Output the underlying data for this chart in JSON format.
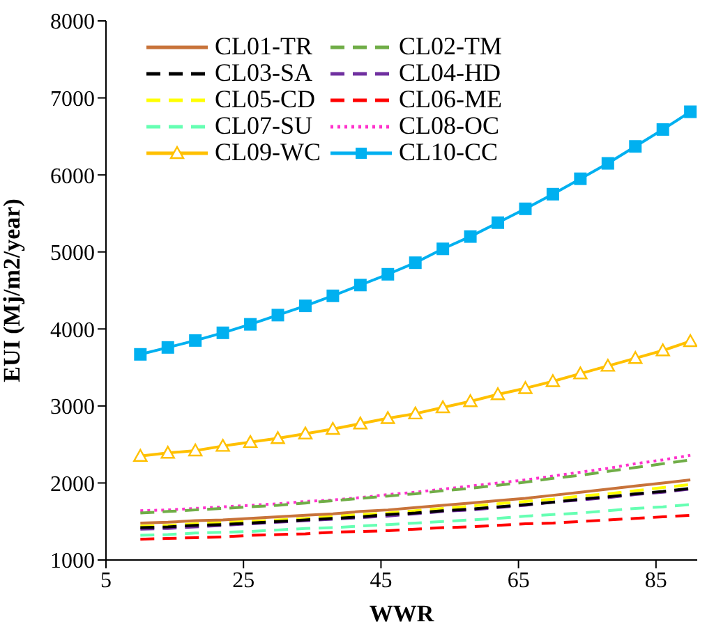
{
  "chart_data": {
    "type": "line",
    "xlabel": "WWR",
    "ylabel": "EUI (Mj/m2/year)",
    "x": [
      10,
      14,
      18,
      22,
      26,
      30,
      34,
      38,
      42,
      46,
      50,
      54,
      58,
      62,
      66,
      70,
      74,
      78,
      82,
      86,
      90
    ],
    "xlim": [
      5,
      91
    ],
    "xticks": [
      5,
      25,
      45,
      65,
      85
    ],
    "ylim": [
      1000,
      8000
    ],
    "yticks": [
      1000,
      2000,
      3000,
      4000,
      5000,
      6000,
      7000,
      8000
    ],
    "legend": "top left",
    "series": [
      {
        "name": "CL01-TR",
        "color": "#c8733a",
        "line_style": "solid",
        "marker": "none",
        "values": [
          1480,
          1490,
          1510,
          1520,
          1540,
          1560,
          1580,
          1600,
          1630,
          1650,
          1680,
          1710,
          1740,
          1770,
          1800,
          1840,
          1880,
          1920,
          1960,
          2000,
          2040
        ]
      },
      {
        "name": "CL02-TM",
        "color": "#70ad47",
        "line_style": "dashed",
        "marker": "none",
        "values": [
          1610,
          1630,
          1650,
          1670,
          1690,
          1710,
          1740,
          1770,
          1800,
          1830,
          1860,
          1900,
          1930,
          1970,
          2010,
          2060,
          2100,
          2150,
          2200,
          2250,
          2300
        ]
      },
      {
        "name": "CL03-SA",
        "color": "#000000",
        "line_style": "dashed",
        "marker": "none",
        "values": [
          1420,
          1430,
          1450,
          1460,
          1480,
          1500,
          1520,
          1540,
          1560,
          1590,
          1610,
          1640,
          1660,
          1690,
          1720,
          1750,
          1790,
          1820,
          1860,
          1890,
          1930
        ]
      },
      {
        "name": "CL04-HD",
        "color": "#7030a0",
        "line_style": "dashed",
        "marker": "none",
        "values": [
          1400,
          1410,
          1430,
          1450,
          1470,
          1490,
          1510,
          1530,
          1550,
          1570,
          1600,
          1630,
          1650,
          1680,
          1710,
          1750,
          1780,
          1810,
          1850,
          1880,
          1920
        ]
      },
      {
        "name": "CL05-CD",
        "color": "#ffff00",
        "line_style": "dashed",
        "marker": "none",
        "values": [
          1440,
          1450,
          1470,
          1490,
          1500,
          1520,
          1540,
          1570,
          1590,
          1610,
          1640,
          1670,
          1700,
          1730,
          1760,
          1790,
          1830,
          1860,
          1900,
          1940,
          1980
        ]
      },
      {
        "name": "CL06-ME",
        "color": "#ff0000",
        "line_style": "dashed",
        "marker": "none",
        "values": [
          1270,
          1280,
          1290,
          1300,
          1320,
          1330,
          1340,
          1360,
          1370,
          1380,
          1400,
          1420,
          1430,
          1450,
          1470,
          1480,
          1500,
          1520,
          1540,
          1560,
          1580
        ]
      },
      {
        "name": "CL07-SU",
        "color": "#66ffb3",
        "line_style": "dashed",
        "marker": "none",
        "values": [
          1320,
          1330,
          1350,
          1360,
          1370,
          1390,
          1410,
          1420,
          1440,
          1460,
          1480,
          1500,
          1520,
          1540,
          1570,
          1590,
          1610,
          1640,
          1670,
          1690,
          1720
        ]
      },
      {
        "name": "CL08-OC",
        "color": "#ff33cc",
        "line_style": "dotted",
        "marker": "none",
        "values": [
          1640,
          1650,
          1670,
          1690,
          1710,
          1730,
          1760,
          1780,
          1810,
          1850,
          1880,
          1920,
          1960,
          2000,
          2040,
          2090,
          2140,
          2190,
          2250,
          2300,
          2360
        ]
      },
      {
        "name": "CL09-WC",
        "color": "#ffc000",
        "line_style": "solid",
        "marker": "triangle",
        "values": [
          2350,
          2390,
          2420,
          2480,
          2530,
          2580,
          2640,
          2700,
          2770,
          2840,
          2900,
          2980,
          3060,
          3150,
          3230,
          3320,
          3420,
          3520,
          3620,
          3720,
          3840
        ]
      },
      {
        "name": "CL10-CC",
        "color": "#00b0f0",
        "line_style": "solid",
        "marker": "square",
        "values": [
          3670,
          3760,
          3850,
          3950,
          4060,
          4180,
          4300,
          4430,
          4570,
          4710,
          4860,
          5040,
          5200,
          5380,
          5560,
          5750,
          5950,
          6150,
          6370,
          6590,
          6820
        ]
      }
    ]
  }
}
